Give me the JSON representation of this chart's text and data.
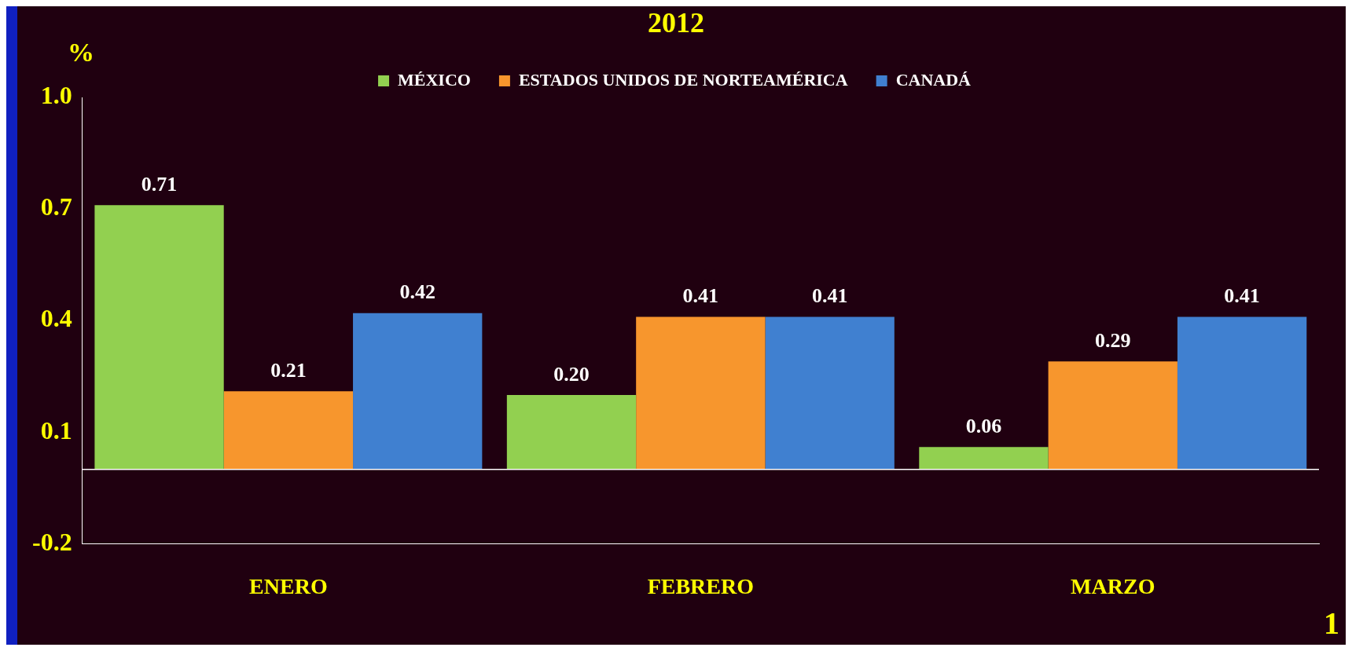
{
  "chart_data": {
    "type": "bar",
    "title": "2012",
    "ylabel": "%",
    "categories": [
      "ENERO",
      "FEBRERO",
      "MARZO"
    ],
    "series": [
      {
        "name": "MÉXICO",
        "color": "#92d050",
        "values": [
          0.71,
          0.2,
          0.06
        ],
        "value_labels": [
          "0.71",
          "0.20",
          "0.06"
        ]
      },
      {
        "name": "ESTADOS UNIDOS DE NORTEAMÉRICA",
        "color": "#f7962d",
        "values": [
          0.21,
          0.41,
          0.29
        ],
        "value_labels": [
          "0.21",
          "0.41",
          "0.29"
        ]
      },
      {
        "name": "CANADÁ",
        "color": "#4080d0",
        "values": [
          0.42,
          0.41,
          0.41
        ],
        "value_labels": [
          "0.42",
          "0.41",
          "0.41"
        ]
      }
    ],
    "ylim": [
      -0.2,
      1.0
    ],
    "yticks": [
      -0.2,
      0.1,
      0.4,
      0.7,
      {
        "value": 1,
        "label": "1.0"
      }
    ],
    "legend": "top",
    "grid": false,
    "annotations": [
      "1"
    ]
  }
}
